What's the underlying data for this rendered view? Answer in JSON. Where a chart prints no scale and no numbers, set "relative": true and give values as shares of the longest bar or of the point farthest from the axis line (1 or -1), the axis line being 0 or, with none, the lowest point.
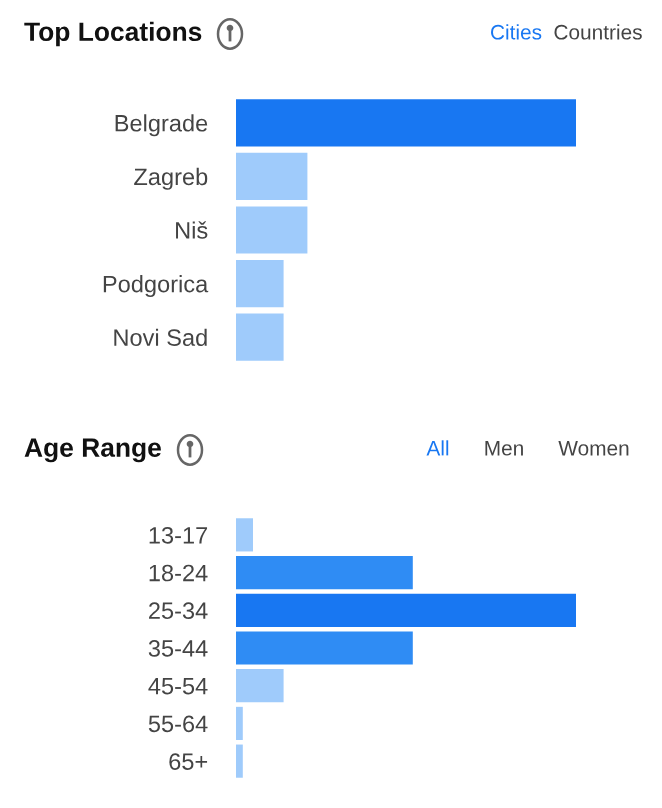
{
  "chart_data": [
    {
      "type": "bar",
      "orientation": "horizontal",
      "relative": true,
      "title": "Top Locations",
      "categories": [
        "Belgrade",
        "Zagreb",
        "Niš",
        "Podgorica",
        "Novi Sad"
      ],
      "values": [
        1,
        0.21,
        0.21,
        0.14,
        0.14
      ],
      "colors": [
        "#1877f2",
        "#9fcbfb",
        "#9fcbfb",
        "#9fcbfb",
        "#9fcbfb"
      ],
      "annotations": [
        "Cities",
        "Countries"
      ],
      "grid": false,
      "legend": false,
      "tick_labels": "y"
    },
    {
      "type": "bar",
      "orientation": "horizontal",
      "relative": true,
      "title": "Age Range",
      "categories": [
        "13-17",
        "18-24",
        "25-34",
        "35-44",
        "45-54",
        "55-64",
        "65+"
      ],
      "values": [
        0.05,
        0.52,
        1,
        0.52,
        0.14,
        0.02,
        0.02
      ],
      "colors": [
        "#9fcbfb",
        "#2f8cf4",
        "#1877f2",
        "#2f8cf4",
        "#9fcbfb",
        "#9fcbfb",
        "#9fcbfb"
      ],
      "annotations": [
        "All",
        "Men",
        "Women"
      ],
      "grid": false,
      "legend": false,
      "tick_labels": "y"
    }
  ]
}
